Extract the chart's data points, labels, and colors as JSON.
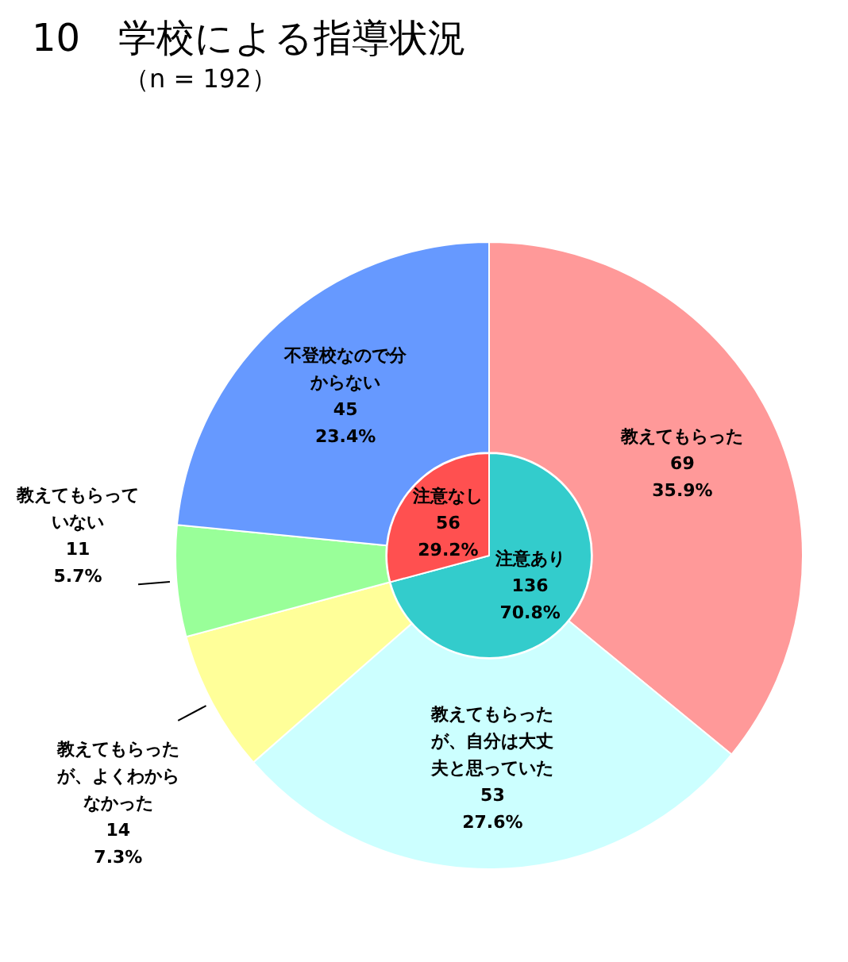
{
  "chart_data": [
    {
      "type": "donut",
      "title": "10　学校による指導状況",
      "subtitle": "（n = 192）",
      "categories": [
        "教えてもらった",
        "教えてもらったが、自分は大丈夫と思っていた",
        "教えてもらったが、よくわからなかった",
        "教えてもらっていない",
        "不登校なので分からない"
      ],
      "values": [
        69,
        53,
        14,
        11,
        45
      ],
      "colors": [
        "#ff9999",
        "#ccffff",
        "#ffff99",
        "#99ff99",
        "#6699ff"
      ],
      "value_labels": [
        "69\n35.9%",
        "53\n27.6%",
        "14\n7.3%",
        "11\n5.7%",
        "45\n23.4%"
      ]
    },
    {
      "type": "pie",
      "categories": [
        "注意あり",
        "注意なし"
      ],
      "values": [
        136,
        56
      ],
      "colors": [
        "#33cccc",
        "#ff5050"
      ],
      "value_labels": [
        "136\n70.8%",
        "56\n29.2%"
      ]
    }
  ]
}
